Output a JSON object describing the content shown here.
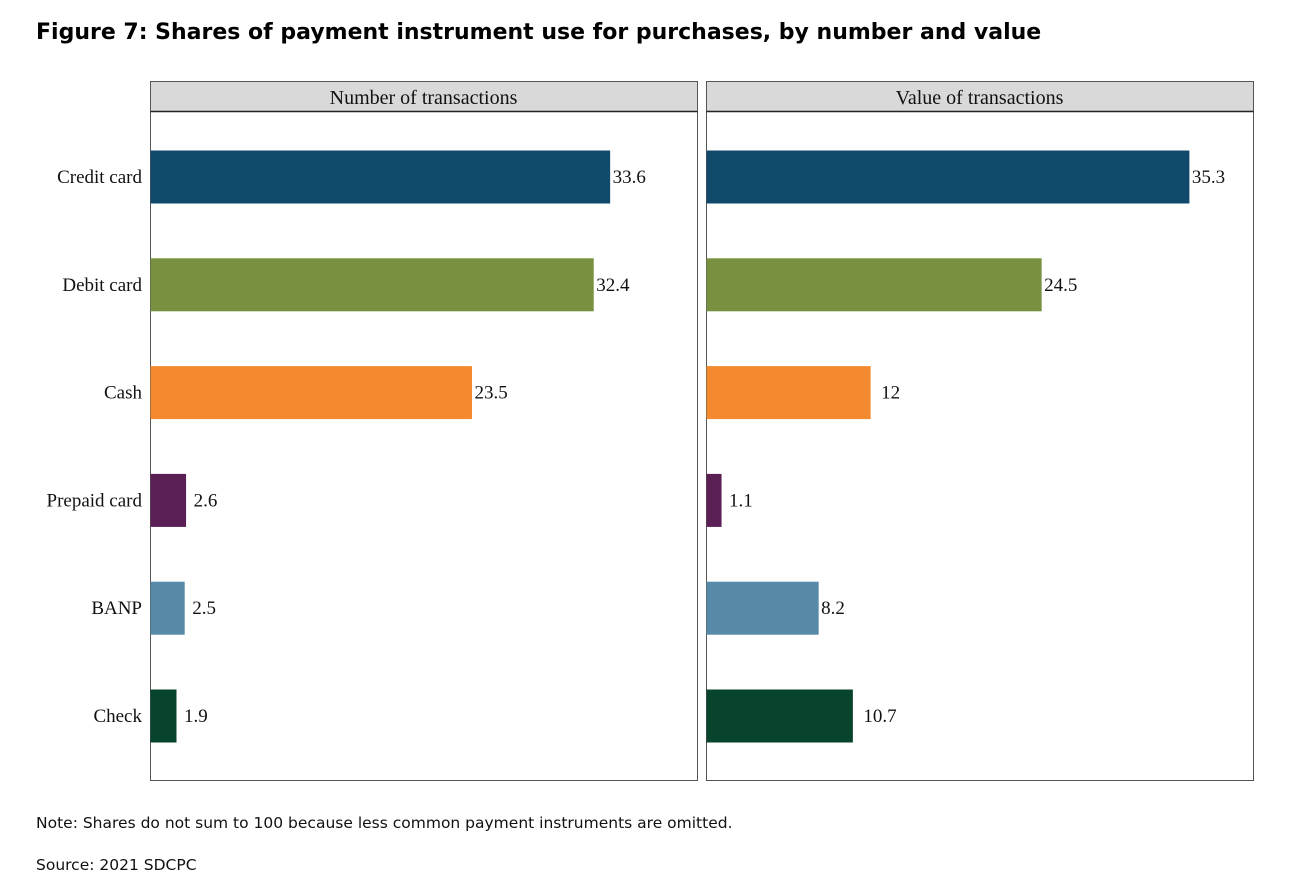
{
  "title": "Figure 7: Shares of payment instrument use for purchases, by number and value",
  "note": "Note: Shares do not sum to 100 because less common payment instruments are omitted.",
  "source": "Source: 2021 SDCPC",
  "chart_data": [
    {
      "type": "bar",
      "orientation": "horizontal",
      "title": "Number of transactions",
      "categories": [
        "Credit card",
        "Debit card",
        "Cash",
        "Prepaid card",
        "BANP",
        "Check"
      ],
      "values": [
        33.6,
        32.4,
        23.5,
        2.6,
        2.5,
        1.9
      ],
      "value_labels": [
        "33.6",
        "32.4",
        "23.5",
        "2.6",
        "2.5",
        "1.9"
      ],
      "colors": [
        "#11496b",
        "#789141",
        "#f48a30",
        "#5a1f55",
        "#578aa8",
        "#08432b"
      ],
      "xlim": [
        0,
        40
      ]
    },
    {
      "type": "bar",
      "orientation": "horizontal",
      "title": "Value of transactions",
      "categories": [
        "Credit card",
        "Debit card",
        "Cash",
        "Prepaid card",
        "BANP",
        "Check"
      ],
      "values": [
        35.3,
        24.5,
        12,
        1.1,
        8.2,
        10.7
      ],
      "value_labels": [
        "35.3",
        "24.5",
        "12",
        "1.1",
        "8.2",
        "10.7"
      ],
      "colors": [
        "#11496b",
        "#789141",
        "#f48a30",
        "#5a1f55",
        "#578aa8",
        "#08432b"
      ],
      "xlim": [
        0,
        40
      ]
    }
  ]
}
